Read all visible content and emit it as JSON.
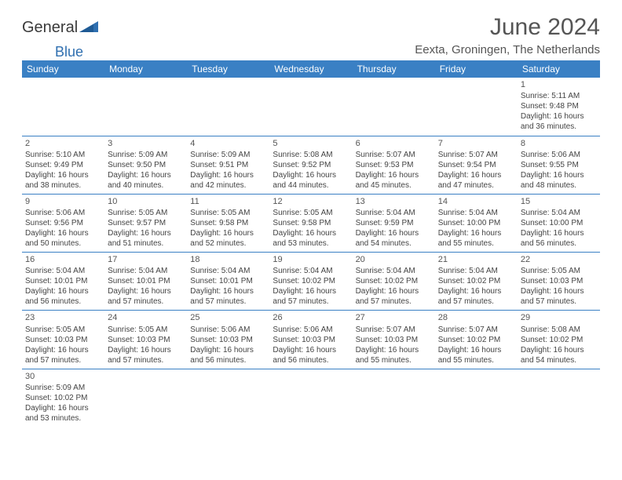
{
  "logo": {
    "word1": "General",
    "word2": "Blue"
  },
  "title": {
    "month": "June 2024",
    "location": "Eexta, Groningen, The Netherlands"
  },
  "colors": {
    "header_bg": "#3a80c4",
    "header_text": "#ffffff",
    "border": "#3a80c4",
    "text": "#444444",
    "title_text": "#555555",
    "logo_blue": "#2f6fb0"
  },
  "weekdays": [
    "Sunday",
    "Monday",
    "Tuesday",
    "Wednesday",
    "Thursday",
    "Friday",
    "Saturday"
  ],
  "labels": {
    "sunrise": "Sunrise:",
    "sunset": "Sunset:",
    "daylight_prefix": "Daylight:",
    "hours_word": "hours",
    "and_word": "and",
    "minutes_word": "minutes."
  },
  "grid": [
    [
      null,
      null,
      null,
      null,
      null,
      null,
      {
        "n": "1",
        "sr": "5:11 AM",
        "ss": "9:48 PM",
        "dh": "16",
        "dm": "36"
      }
    ],
    [
      {
        "n": "2",
        "sr": "5:10 AM",
        "ss": "9:49 PM",
        "dh": "16",
        "dm": "38"
      },
      {
        "n": "3",
        "sr": "5:09 AM",
        "ss": "9:50 PM",
        "dh": "16",
        "dm": "40"
      },
      {
        "n": "4",
        "sr": "5:09 AM",
        "ss": "9:51 PM",
        "dh": "16",
        "dm": "42"
      },
      {
        "n": "5",
        "sr": "5:08 AM",
        "ss": "9:52 PM",
        "dh": "16",
        "dm": "44"
      },
      {
        "n": "6",
        "sr": "5:07 AM",
        "ss": "9:53 PM",
        "dh": "16",
        "dm": "45"
      },
      {
        "n": "7",
        "sr": "5:07 AM",
        "ss": "9:54 PM",
        "dh": "16",
        "dm": "47"
      },
      {
        "n": "8",
        "sr": "5:06 AM",
        "ss": "9:55 PM",
        "dh": "16",
        "dm": "48"
      }
    ],
    [
      {
        "n": "9",
        "sr": "5:06 AM",
        "ss": "9:56 PM",
        "dh": "16",
        "dm": "50"
      },
      {
        "n": "10",
        "sr": "5:05 AM",
        "ss": "9:57 PM",
        "dh": "16",
        "dm": "51"
      },
      {
        "n": "11",
        "sr": "5:05 AM",
        "ss": "9:58 PM",
        "dh": "16",
        "dm": "52"
      },
      {
        "n": "12",
        "sr": "5:05 AM",
        "ss": "9:58 PM",
        "dh": "16",
        "dm": "53"
      },
      {
        "n": "13",
        "sr": "5:04 AM",
        "ss": "9:59 PM",
        "dh": "16",
        "dm": "54"
      },
      {
        "n": "14",
        "sr": "5:04 AM",
        "ss": "10:00 PM",
        "dh": "16",
        "dm": "55"
      },
      {
        "n": "15",
        "sr": "5:04 AM",
        "ss": "10:00 PM",
        "dh": "16",
        "dm": "56"
      }
    ],
    [
      {
        "n": "16",
        "sr": "5:04 AM",
        "ss": "10:01 PM",
        "dh": "16",
        "dm": "56"
      },
      {
        "n": "17",
        "sr": "5:04 AM",
        "ss": "10:01 PM",
        "dh": "16",
        "dm": "57"
      },
      {
        "n": "18",
        "sr": "5:04 AM",
        "ss": "10:01 PM",
        "dh": "16",
        "dm": "57"
      },
      {
        "n": "19",
        "sr": "5:04 AM",
        "ss": "10:02 PM",
        "dh": "16",
        "dm": "57"
      },
      {
        "n": "20",
        "sr": "5:04 AM",
        "ss": "10:02 PM",
        "dh": "16",
        "dm": "57"
      },
      {
        "n": "21",
        "sr": "5:04 AM",
        "ss": "10:02 PM",
        "dh": "16",
        "dm": "57"
      },
      {
        "n": "22",
        "sr": "5:05 AM",
        "ss": "10:03 PM",
        "dh": "16",
        "dm": "57"
      }
    ],
    [
      {
        "n": "23",
        "sr": "5:05 AM",
        "ss": "10:03 PM",
        "dh": "16",
        "dm": "57"
      },
      {
        "n": "24",
        "sr": "5:05 AM",
        "ss": "10:03 PM",
        "dh": "16",
        "dm": "57"
      },
      {
        "n": "25",
        "sr": "5:06 AM",
        "ss": "10:03 PM",
        "dh": "16",
        "dm": "56"
      },
      {
        "n": "26",
        "sr": "5:06 AM",
        "ss": "10:03 PM",
        "dh": "16",
        "dm": "56"
      },
      {
        "n": "27",
        "sr": "5:07 AM",
        "ss": "10:03 PM",
        "dh": "16",
        "dm": "55"
      },
      {
        "n": "28",
        "sr": "5:07 AM",
        "ss": "10:02 PM",
        "dh": "16",
        "dm": "55"
      },
      {
        "n": "29",
        "sr": "5:08 AM",
        "ss": "10:02 PM",
        "dh": "16",
        "dm": "54"
      }
    ],
    [
      {
        "n": "30",
        "sr": "5:09 AM",
        "ss": "10:02 PM",
        "dh": "16",
        "dm": "53"
      },
      null,
      null,
      null,
      null,
      null,
      null
    ]
  ]
}
